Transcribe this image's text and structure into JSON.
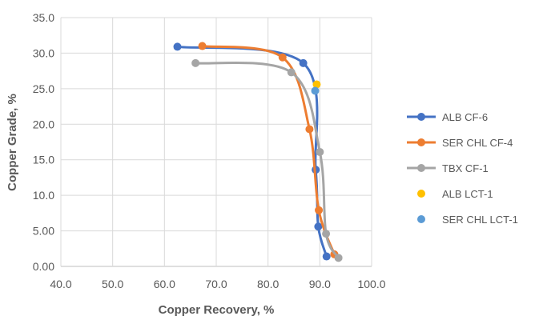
{
  "chart_data": {
    "type": "scatter",
    "xlabel": "Copper Recovery, %",
    "ylabel": "Copper Grade, %",
    "xlim": [
      40,
      100
    ],
    "ylim": [
      0,
      35
    ],
    "x_ticks": [
      "40.0",
      "50.0",
      "60.0",
      "70.0",
      "80.0",
      "90.0",
      "100.0"
    ],
    "y_ticks": [
      "0.00",
      "5.00",
      "10.0",
      "15.0",
      "20.0",
      "25.0",
      "30.0",
      "35.0"
    ],
    "grid": true,
    "legend_position": "right",
    "series": [
      {
        "name": "ALB CF-6",
        "color": "#4472C4",
        "mode": "lines+markers",
        "points": [
          [
            62.5,
            30.9
          ],
          [
            86.8,
            28.6
          ],
          [
            89.2,
            13.6
          ],
          [
            89.7,
            5.6
          ],
          [
            91.3,
            1.4
          ]
        ]
      },
      {
        "name": "SER CHL CF-4",
        "color": "#ED7D31",
        "mode": "lines+markers",
        "points": [
          [
            67.3,
            31.0
          ],
          [
            82.8,
            29.4
          ],
          [
            88.0,
            19.3
          ],
          [
            89.8,
            7.9
          ],
          [
            92.8,
            1.7
          ]
        ]
      },
      {
        "name": "TBX CF-1",
        "color": "#A5A5A5",
        "mode": "lines+markers",
        "points": [
          [
            66.0,
            28.6
          ],
          [
            84.5,
            27.3
          ],
          [
            90.0,
            16.1
          ],
          [
            91.2,
            4.6
          ],
          [
            93.6,
            1.2
          ]
        ]
      },
      {
        "name": "ALB LCT-1",
        "color": "#FFC000",
        "mode": "markers",
        "points": [
          [
            89.4,
            25.6
          ]
        ]
      },
      {
        "name": "SER CHL LCT-1",
        "color": "#5B9BD5",
        "mode": "markers",
        "points": [
          [
            89.1,
            24.7
          ]
        ]
      }
    ]
  }
}
